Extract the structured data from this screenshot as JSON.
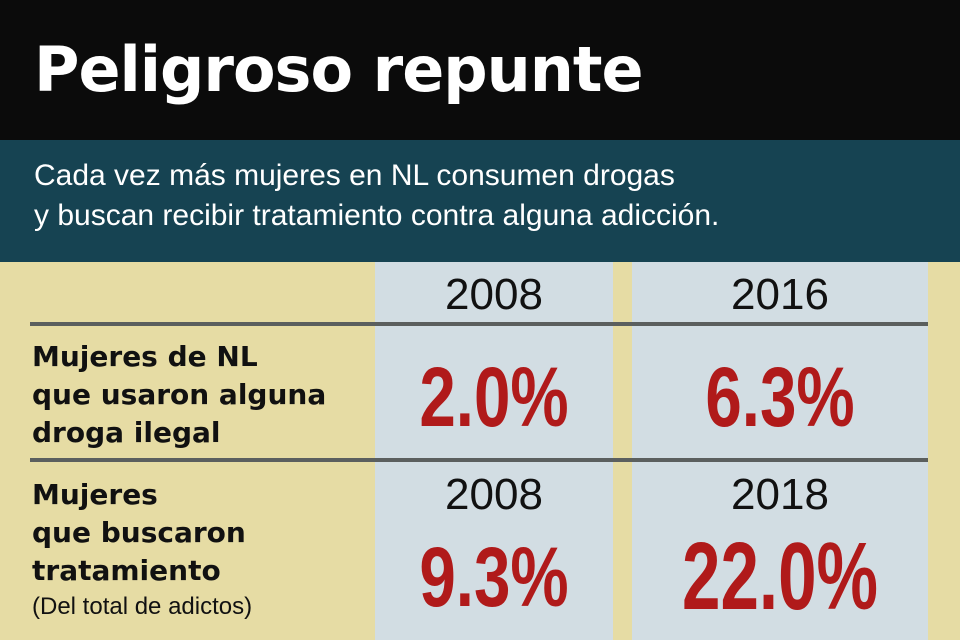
{
  "header": {
    "title": "Peligroso repunte",
    "subtitle_line1": "Cada vez más mujeres en NL consumen drogas",
    "subtitle_line2": "y buscan recibir tratamiento contra alguna adicción."
  },
  "rows": [
    {
      "label_lines": [
        "Mujeres de NL",
        "que usaron alguna",
        "droga ilegal"
      ],
      "col1_year": "2008",
      "col1_value": "2.0%",
      "col2_year": "2016",
      "col2_value": "6.3%"
    },
    {
      "label_lines": [
        "Mujeres",
        "que buscaron",
        "tratamiento"
      ],
      "note": "(Del total de adictos)",
      "col1_year": "2008",
      "col1_value": "9.3%",
      "col2_year": "2018",
      "col2_value": "22.0%"
    }
  ],
  "colors": {
    "title_bg": "#0b0b0b",
    "subtitle_bg": "#164352",
    "panel_bg": "#e6dca4",
    "column_bg": "#d2dde3",
    "value_red": "#b01a1a"
  }
}
